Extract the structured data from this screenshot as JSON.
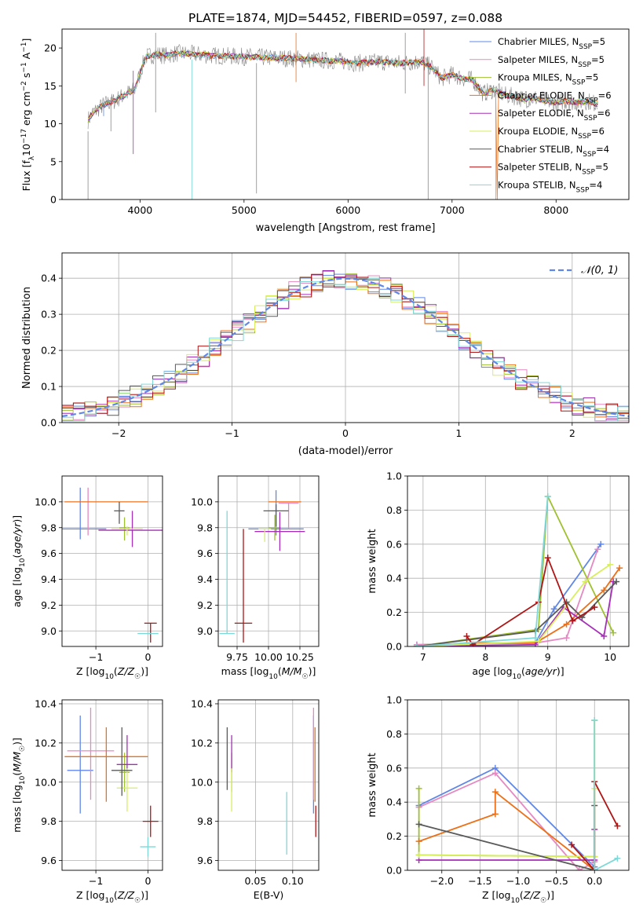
{
  "figure": {
    "title": "PLATE=1874, MJD=54452, FIBERID=0597, z=0.088"
  },
  "colors": {
    "Chabrier MILES": "#5f87e8",
    "Salpeter MILES": "#e589c2",
    "Kroupa MILES": "#9fc12f",
    "Chabrier ELODIE": "#ed7018",
    "Salpeter ELODIE": "#a62fb7",
    "Kroupa ELODIE": "#d8ef5c",
    "Chabrier STELIB": "#5a5a5a",
    "Salpeter STELIB": "#b01515",
    "Kroupa STELIB": "#7fd8d8"
  },
  "chart_data": [
    {
      "id": "spectrum",
      "type": "line",
      "xlabel": "wavelength [Angstrom, rest frame]",
      "ylabel": "Flux [f_λ10^-17 erg cm^-2 s^-1 A^-1]",
      "xlim": [
        3250,
        8700
      ],
      "ylim": [
        0,
        22.5
      ],
      "xticks": [
        4000,
        5000,
        6000,
        7000,
        8000
      ],
      "yticks": [
        0,
        5,
        10,
        15,
        20
      ],
      "grid": false,
      "legend_position": "top-right",
      "legend": [
        {
          "label": "Chabrier MILES",
          "sub": "SSP",
          "n": "5",
          "color": "#5f87e8"
        },
        {
          "label": "Salpeter MILES",
          "sub": "SSP",
          "n": "5",
          "color": "#e589c2"
        },
        {
          "label": "Kroupa MILES",
          "sub": "SSP",
          "n": "5",
          "color": "#9fc12f"
        },
        {
          "label": "Chabrier ELODIE",
          "sub": "SSP",
          "n": "6",
          "color": "#ed7018"
        },
        {
          "label": "Salpeter ELODIE",
          "sub": "SSP",
          "n": "6",
          "color": "#a62fb7"
        },
        {
          "label": "Kroupa ELODIE",
          "sub": "SSP",
          "n": "6",
          "color": "#d8ef5c"
        },
        {
          "label": "Chabrier STELIB",
          "sub": "SSP",
          "n": "4",
          "color": "#5a5a5a"
        },
        {
          "label": "Salpeter STELIB",
          "sub": "SSP",
          "n": "5",
          "color": "#b01515"
        },
        {
          "label": "Kroupa STELIB",
          "sub": "SSP",
          "n": "4",
          "color": "#7fd8d8"
        }
      ],
      "continuum": {
        "x": [
          3500,
          3550,
          3650,
          3750,
          3850,
          3950,
          4050,
          4150,
          4250,
          4350,
          4500,
          4700,
          4900,
          5100,
          5300,
          5500,
          5700,
          5900,
          6100,
          6300,
          6500,
          6700,
          6800,
          6900,
          7000,
          7100,
          7200,
          7300,
          7400,
          7500,
          7600,
          7700,
          7800,
          7900,
          8000,
          8100,
          8200,
          8300,
          8400
        ],
        "y": [
          10.5,
          11.5,
          12.5,
          13.0,
          13.8,
          14.5,
          18.8,
          19.2,
          19.0,
          19.3,
          19.2,
          19.0,
          18.9,
          18.8,
          18.7,
          18.6,
          18.4,
          18.3,
          18.0,
          18.2,
          18.0,
          18.2,
          17.5,
          16.0,
          16.5,
          16.0,
          15.8,
          14.0,
          14.5,
          13.8,
          13.6,
          13.2,
          13.4,
          13.0,
          12.8,
          13.0,
          12.8,
          13.0,
          12.6
        ]
      },
      "residual_lines": [
        {
          "x": 3650,
          "y_min": 11.0,
          "y_max": 12.5
        },
        {
          "x": 3720,
          "y_min": 9.0,
          "y_max": 13.5
        },
        {
          "x": 3935,
          "y_min": 6.0,
          "y_max": 17.0
        },
        {
          "x": 4150,
          "y_min": 11.5,
          "y_max": 22.0
        },
        {
          "x": 4500,
          "y_min": 0.0,
          "y_max": 18.5
        },
        {
          "x": 5120,
          "y_min": 0.8,
          "y_max": 18.0
        },
        {
          "x": 5500,
          "y_min": 15.5,
          "y_max": 22.0
        },
        {
          "x": 6550,
          "y_min": 14.0,
          "y_max": 22.0
        },
        {
          "x": 6730,
          "y_min": 15.0,
          "y_max": 22.5
        },
        {
          "x": 6770,
          "y_min": 0.0,
          "y_max": 18.0
        },
        {
          "x": 7420,
          "y_min": 0.0,
          "y_max": 13.0
        },
        {
          "x": 3500,
          "y_min": 0.0,
          "y_max": 9.0
        }
      ]
    },
    {
      "id": "residuals",
      "type": "bar",
      "xlabel": "(data-model)/error",
      "ylabel": "Normed distribution",
      "xlim": [
        -2.5,
        2.5
      ],
      "ylim": [
        0,
        0.47
      ],
      "xticks": [
        -2,
        -1,
        0,
        1,
        2
      ],
      "yticks": [
        0.0,
        0.1,
        0.2,
        0.3,
        0.4
      ],
      "grid": true,
      "legend_position": "top-right",
      "legend": [
        {
          "label": "𝒩(0, 1)",
          "color": "#5f87e8",
          "dashed": true
        }
      ],
      "histogram": {
        "bin_width": 0.1,
        "x_start": -2.5,
        "series_count": 9
      }
    },
    {
      "id": "age_vs_Z",
      "type": "scatter",
      "xlabel": "Z [log10(Z/Z☉)]",
      "ylabel": "age  [log10(age/yr)]",
      "xlim": [
        -1.65,
        0.28
      ],
      "ylim": [
        8.88,
        10.2
      ],
      "xticks": [
        -1,
        0
      ],
      "yticks": [
        9.0,
        9.2,
        9.4,
        9.6,
        9.8,
        10.0
      ],
      "grid": true,
      "points": [
        {
          "series": "Chabrier MILES",
          "x": -1.3,
          "y": 9.79,
          "xerr": 0.5,
          "yerr": [
            0.08,
            0.32
          ]
        },
        {
          "series": "Salpeter MILES",
          "x": -1.15,
          "y": 9.99,
          "xerr": 0.0,
          "yerr": [
            0.25,
            0.12
          ]
        },
        {
          "series": "Kroupa MILES",
          "x": -0.45,
          "y": 9.8,
          "xerr": 0.1,
          "yerr": [
            0.1,
            0.08
          ]
        },
        {
          "series": "Chabrier ELODIE",
          "x": -0.8,
          "y": 10.0,
          "xerr": 0.8,
          "yerr": [
            0.0,
            0.0
          ]
        },
        {
          "series": "Salpeter ELODIE",
          "x": -0.3,
          "y": 9.78,
          "xerr": 0.65,
          "yerr": [
            0.13,
            0.15
          ]
        },
        {
          "series": "Kroupa ELODIE",
          "x": -0.4,
          "y": 9.79,
          "xerr": 0.3,
          "yerr": [
            0.05,
            0.02
          ]
        },
        {
          "series": "Chabrier STELIB",
          "x": -0.55,
          "y": 9.93,
          "xerr": 0.1,
          "yerr": [
            0.1,
            0.07
          ]
        },
        {
          "series": "Salpeter STELIB",
          "x": 0.05,
          "y": 9.06,
          "xerr": 0.12,
          "yerr": [
            0.15,
            0.0
          ]
        },
        {
          "series": "Kroupa STELIB",
          "x": 0.0,
          "y": 8.98,
          "xerr": 0.2,
          "yerr": [
            0.0,
            0.0
          ]
        }
      ]
    },
    {
      "id": "age_vs_mass",
      "type": "scatter",
      "xlabel": "mass [log10(M/M☉)]",
      "ylabel": "",
      "xlim": [
        9.6,
        10.4
      ],
      "ylim": [
        8.88,
        10.2
      ],
      "xticks": [
        9.75,
        10.0,
        10.25
      ],
      "xticklabels": [
        "9.75",
        "10.00",
        "10.25"
      ],
      "yticks": [
        9.0,
        9.2,
        9.4,
        9.6,
        9.8,
        10.0
      ],
      "grid": true,
      "points": [
        {
          "series": "Chabrier MILES",
          "x": 10.06,
          "y": 9.79,
          "xerr": 0.22,
          "yerr": [
            0.05,
            0.3
          ]
        },
        {
          "series": "Salpeter MILES",
          "x": 10.16,
          "y": 9.99,
          "xerr": 0.08,
          "yerr": [
            0.2,
            0.0
          ]
        },
        {
          "series": "Kroupa MILES",
          "x": 10.05,
          "y": 9.8,
          "xerr": 0.05,
          "yerr": [
            0.1,
            0.1
          ]
        },
        {
          "series": "Chabrier ELODIE",
          "x": 10.13,
          "y": 10.0,
          "xerr": 0.13,
          "yerr": [
            0.0,
            0.0
          ]
        },
        {
          "series": "Salpeter ELODIE",
          "x": 10.09,
          "y": 9.77,
          "xerr": 0.2,
          "yerr": [
            0.15,
            0.15
          ]
        },
        {
          "series": "Kroupa ELODIE",
          "x": 9.97,
          "y": 9.79,
          "xerr": 0.05,
          "yerr": [
            0.1,
            0.0
          ]
        },
        {
          "series": "Chabrier STELIB",
          "x": 10.06,
          "y": 9.93,
          "xerr": 0.1,
          "yerr": [
            0.12,
            0.05
          ]
        },
        {
          "series": "Salpeter STELIB",
          "x": 9.8,
          "y": 9.06,
          "xerr": 0.07,
          "yerr": [
            0.15,
            0.73
          ]
        },
        {
          "series": "Kroupa STELIB",
          "x": 9.67,
          "y": 8.98,
          "xerr": 0.06,
          "yerr": [
            0.0,
            0.95
          ]
        }
      ]
    },
    {
      "id": "weight_vs_age",
      "type": "line",
      "xlabel": "age  [log10(age/yr)]",
      "ylabel": "mass weight",
      "xlim": [
        6.75,
        10.3
      ],
      "ylim": [
        0,
        1.0
      ],
      "xticks": [
        7,
        8,
        9,
        10
      ],
      "yticks": [
        0.0,
        0.2,
        0.4,
        0.6,
        0.8,
        1.0
      ],
      "grid": true,
      "series": [
        {
          "name": "Chabrier MILES",
          "x": [
            6.9,
            8.8,
            9.1,
            9.85
          ],
          "y": [
            0.01,
            0.02,
            0.22,
            0.6
          ]
        },
        {
          "name": "Salpeter MILES",
          "x": [
            6.9,
            8.8,
            9.3,
            9.8
          ],
          "y": [
            0.01,
            0.02,
            0.05,
            0.57
          ]
        },
        {
          "name": "Kroupa MILES",
          "x": [
            6.9,
            8.85,
            9.0,
            10.05
          ],
          "y": [
            0.0,
            0.1,
            0.88,
            0.08
          ]
        },
        {
          "name": "Chabrier ELODIE",
          "x": [
            6.9,
            7.7,
            8.8,
            9.3,
            9.9,
            10.15
          ],
          "y": [
            0.0,
            0.02,
            0.02,
            0.13,
            0.33,
            0.46
          ]
        },
        {
          "name": "Salpeter ELODIE",
          "x": [
            6.9,
            8.8,
            9.25,
            9.9,
            10.05
          ],
          "y": [
            0.0,
            0.01,
            0.23,
            0.06,
            0.38
          ]
        },
        {
          "name": "Kroupa ELODIE",
          "x": [
            6.9,
            8.85,
            9.6,
            10.0
          ],
          "y": [
            0.0,
            0.03,
            0.38,
            0.48
          ]
        },
        {
          "name": "Chabrier STELIB",
          "x": [
            6.9,
            8.8,
            9.3,
            9.55,
            10.1
          ],
          "y": [
            0.0,
            0.09,
            0.26,
            0.17,
            0.38
          ]
        },
        {
          "name": "Salpeter STELIB",
          "x": [
            7.7,
            7.8,
            8.85,
            9.0,
            9.4,
            9.75
          ],
          "y": [
            0.06,
            0.01,
            0.26,
            0.52,
            0.15,
            0.23
          ]
        },
        {
          "name": "Kroupa STELIB",
          "x": [
            6.9,
            8.8,
            9.0
          ],
          "y": [
            0.0,
            0.05,
            0.88
          ]
        }
      ]
    },
    {
      "id": "mass_vs_Z",
      "type": "scatter",
      "xlabel": "Z [log10(Z/Z☉)]",
      "ylabel": "mass [log10(M/M☉)]",
      "xlim": [
        -1.65,
        0.28
      ],
      "ylim": [
        9.55,
        10.42
      ],
      "xticks": [
        -1,
        0
      ],
      "yticks": [
        9.6,
        9.8,
        10.0,
        10.2,
        10.4
      ],
      "grid": true,
      "points": [
        {
          "series": "Chabrier MILES",
          "x": -1.3,
          "y": 10.06,
          "xerr": 0.25,
          "yerr": [
            0.22,
            0.28
          ]
        },
        {
          "series": "Salpeter MILES",
          "x": -1.1,
          "y": 10.16,
          "xerr": 0.45,
          "yerr": [
            0.25,
            0.22
          ]
        },
        {
          "series": "Kroupa MILES",
          "x": -0.45,
          "y": 10.05,
          "xerr": 0.1,
          "yerr": [
            0.1,
            0.1
          ]
        },
        {
          "series": "Chabrier ELODIE",
          "x": -0.8,
          "y": 10.13,
          "xerr": 0.8,
          "yerr": [
            0.23,
            0.15
          ]
        },
        {
          "series": "Salpeter ELODIE",
          "x": -0.4,
          "y": 10.09,
          "xerr": 0.2,
          "yerr": [
            0.04,
            0.15
          ]
        },
        {
          "series": "Kroupa ELODIE",
          "x": -0.4,
          "y": 9.97,
          "xerr": 0.2,
          "yerr": [
            0.12,
            0.1
          ]
        },
        {
          "series": "Chabrier STELIB",
          "x": -0.5,
          "y": 10.06,
          "xerr": 0.2,
          "yerr": [
            0.13,
            0.22
          ]
        },
        {
          "series": "Salpeter STELIB",
          "x": 0.05,
          "y": 9.8,
          "xerr": 0.15,
          "yerr": [
            0.08,
            0.08
          ]
        },
        {
          "series": "Kroupa STELIB",
          "x": 0.0,
          "y": 9.67,
          "xerr": 0.15,
          "yerr": [
            0.05,
            0.05
          ]
        }
      ]
    },
    {
      "id": "mass_vs_EBV",
      "type": "scatter",
      "xlabel": "E(B-V)",
      "ylabel": "",
      "xlim": [
        0.0,
        0.135
      ],
      "ylim": [
        9.55,
        10.42
      ],
      "xticks": [
        0.05,
        0.1
      ],
      "xticklabels": [
        "0.05",
        "0.10"
      ],
      "yticks": [
        9.6,
        9.8,
        10.0,
        10.2,
        10.4
      ],
      "grid": true,
      "points": [
        {
          "series": "Chabrier MILES",
          "x": 0.128,
          "y": 10.06,
          "xerr": 0.0,
          "yerr": [
            0.22,
            0.28
          ]
        },
        {
          "series": "Salpeter MILES",
          "x": 0.128,
          "y": 10.16,
          "xerr": 0.0,
          "yerr": [
            0.25,
            0.22
          ]
        },
        {
          "series": "Kroupa MILES",
          "x": 0.018,
          "y": 10.05,
          "xerr": 0.0,
          "yerr": [
            0.1,
            0.1
          ]
        },
        {
          "series": "Chabrier ELODIE",
          "x": 0.13,
          "y": 10.13,
          "xerr": 0.0,
          "yerr": [
            0.23,
            0.15
          ]
        },
        {
          "series": "Salpeter ELODIE",
          "x": 0.018,
          "y": 10.09,
          "xerr": 0.0,
          "yerr": [
            0.04,
            0.15
          ]
        },
        {
          "series": "Kroupa ELODIE",
          "x": 0.018,
          "y": 9.97,
          "xerr": 0.0,
          "yerr": [
            0.12,
            0.1
          ]
        },
        {
          "series": "Chabrier STELIB",
          "x": 0.012,
          "y": 10.06,
          "xerr": 0.0,
          "yerr": [
            0.1,
            0.22
          ]
        },
        {
          "series": "Salpeter STELIB",
          "x": 0.131,
          "y": 9.8,
          "xerr": 0.0,
          "yerr": [
            0.08,
            0.08
          ]
        },
        {
          "series": "Kroupa STELIB",
          "x": 0.092,
          "y": 9.7,
          "xerr": 0.0,
          "yerr": [
            0.07,
            0.25
          ]
        }
      ]
    },
    {
      "id": "weight_vs_Z",
      "type": "line",
      "xlabel": "Z [log10(Z/Z☉)]",
      "ylabel": "mass weight",
      "xlim": [
        -2.45,
        0.45
      ],
      "ylim": [
        0,
        1.0
      ],
      "xticks": [
        -2.0,
        -1.5,
        -1.0,
        -0.5,
        0.0
      ],
      "xticklabels": [
        "−2.0",
        "−1.5",
        "−1.0",
        "−0.5",
        "0.0"
      ],
      "yticks": [
        0.0,
        0.2,
        0.4,
        0.6,
        0.8,
        1.0
      ],
      "grid": true,
      "series": [
        {
          "name": "Chabrier MILES",
          "x": [
            -2.3,
            -1.3,
            0.0
          ],
          "y": [
            0.38,
            0.6,
            0.02
          ]
        },
        {
          "name": "Salpeter MILES",
          "x": [
            -2.3,
            -1.3,
            -0.2,
            0.0
          ],
          "y": [
            0.37,
            0.57,
            0.0,
            0.05
          ]
        },
        {
          "name": "Kroupa MILES",
          "x": [
            -2.3,
            -2.3,
            0.0,
            0.0
          ],
          "y": [
            0.48,
            0.09,
            0.08,
            0.88
          ]
        },
        {
          "name": "Chabrier ELODIE",
          "x": [
            -2.3,
            -1.3,
            -1.3,
            0.0,
            0.0
          ],
          "y": [
            0.17,
            0.33,
            0.46,
            0.0,
            0.0
          ]
        },
        {
          "name": "Salpeter ELODIE",
          "x": [
            -2.3,
            0.0,
            0.0
          ],
          "y": [
            0.06,
            0.06,
            0.24
          ]
        },
        {
          "name": "Kroupa ELODIE",
          "x": [
            -2.3,
            0.0,
            0.0
          ],
          "y": [
            0.09,
            0.08,
            0.48
          ]
        },
        {
          "name": "Chabrier STELIB",
          "x": [
            -2.3,
            0.0,
            0.0
          ],
          "y": [
            0.27,
            0.0,
            0.38
          ]
        },
        {
          "name": "Salpeter STELIB",
          "x": [
            -0.3,
            0.0,
            0.0,
            0.3
          ],
          "y": [
            0.15,
            0.0,
            0.52,
            0.26
          ]
        },
        {
          "name": "Kroupa STELIB",
          "x": [
            0.0,
            0.0,
            0.3
          ],
          "y": [
            0.88,
            0.0,
            0.07
          ]
        }
      ]
    }
  ]
}
